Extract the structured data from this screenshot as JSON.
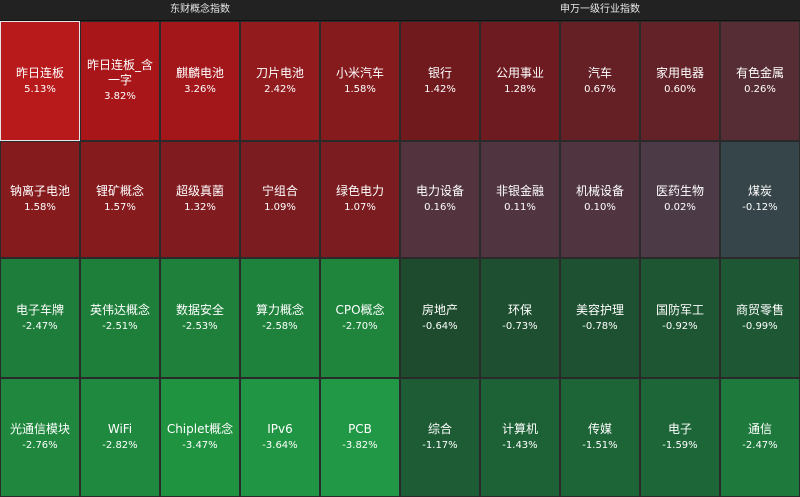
{
  "left": {
    "title": "东财概念指数",
    "cells": [
      {
        "name": "昨日连板",
        "value": "5.13%",
        "color": "#b81a1b",
        "selected": true
      },
      {
        "name": "昨日连板_含一字",
        "value": "3.82%",
        "color": "#a8161a"
      },
      {
        "name": "麒麟电池",
        "value": "3.26%",
        "color": "#a3171b"
      },
      {
        "name": "刀片电池",
        "value": "2.42%",
        "color": "#921b1e"
      },
      {
        "name": "小米汽车",
        "value": "1.58%",
        "color": "#861b1e"
      },
      {
        "name": "钠离子电池",
        "value": "1.58%",
        "color": "#861b1e"
      },
      {
        "name": "锂矿概念",
        "value": "1.57%",
        "color": "#861b1e"
      },
      {
        "name": "超级真菌",
        "value": "1.32%",
        "color": "#801c20"
      },
      {
        "name": "宁组合",
        "value": "1.09%",
        "color": "#7b1c20"
      },
      {
        "name": "绿色电力",
        "value": "1.07%",
        "color": "#7b1c20"
      },
      {
        "name": "电子车牌",
        "value": "-2.47%",
        "color": "#1e7d3a"
      },
      {
        "name": "英伟达概念",
        "value": "-2.51%",
        "color": "#1e7f3b"
      },
      {
        "name": "数据安全",
        "value": "-2.53%",
        "color": "#1e803b"
      },
      {
        "name": "算力概念",
        "value": "-2.58%",
        "color": "#1e823c"
      },
      {
        "name": "CPO概念",
        "value": "-2.70%",
        "color": "#1f853d"
      },
      {
        "name": "光通信模块",
        "value": "-2.76%",
        "color": "#1f873e"
      },
      {
        "name": "WiFi",
        "value": "-2.82%",
        "color": "#1f893f"
      },
      {
        "name": "Chiplet概念",
        "value": "-3.47%",
        "color": "#209341"
      },
      {
        "name": "IPv6",
        "value": "-3.64%",
        "color": "#209543"
      },
      {
        "name": "PCB",
        "value": "-3.82%",
        "color": "#219845"
      }
    ]
  },
  "right": {
    "title": "申万一级行业指数",
    "cells": [
      {
        "name": "银行",
        "value": "1.42%",
        "color": "#701a1e"
      },
      {
        "name": "公用事业",
        "value": "1.28%",
        "color": "#6d1b20"
      },
      {
        "name": "汽车",
        "value": "0.67%",
        "color": "#652026"
      },
      {
        "name": "家用电器",
        "value": "0.60%",
        "color": "#632228"
      },
      {
        "name": "有色金属",
        "value": "0.26%",
        "color": "#572d35"
      },
      {
        "name": "电力设备",
        "value": "0.16%",
        "color": "#52333e"
      },
      {
        "name": "非银金融",
        "value": "0.11%",
        "color": "#503540"
      },
      {
        "name": "机械设备",
        "value": "0.10%",
        "color": "#503540"
      },
      {
        "name": "医药生物",
        "value": "0.02%",
        "color": "#4c3a46"
      },
      {
        "name": "煤炭",
        "value": "-0.12%",
        "color": "#36454a"
      },
      {
        "name": "房地产",
        "value": "-0.64%",
        "color": "#1e4b2e"
      },
      {
        "name": "环保",
        "value": "-0.73%",
        "color": "#1e4f30"
      },
      {
        "name": "美容护理",
        "value": "-0.78%",
        "color": "#1e5131"
      },
      {
        "name": "国防军工",
        "value": "-0.92%",
        "color": "#1e5533"
      },
      {
        "name": "商贸零售",
        "value": "-0.99%",
        "color": "#1e5734"
      },
      {
        "name": "综合",
        "value": "-1.17%",
        "color": "#1d5c35"
      },
      {
        "name": "计算机",
        "value": "-1.43%",
        "color": "#1d6236"
      },
      {
        "name": "传媒",
        "value": "-1.51%",
        "color": "#1d6437"
      },
      {
        "name": "电子",
        "value": "-1.59%",
        "color": "#1d6638"
      },
      {
        "name": "通信",
        "value": "-2.47%",
        "color": "#1e7a3c"
      }
    ]
  }
}
